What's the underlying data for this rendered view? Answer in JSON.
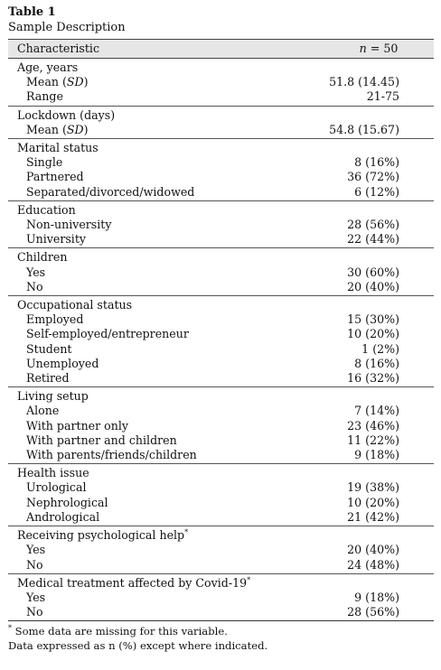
{
  "table": {
    "label": "Table 1",
    "caption": "Sample Description",
    "header": {
      "characteristic": "Characteristic",
      "n_symbol": "n",
      "n_value": " = 50"
    },
    "age": {
      "title": "Age, years",
      "mean_label": "Mean (",
      "mean_sd": "SD",
      "mean_close": ")",
      "mean_value": "51.8 (14.45)",
      "range_label": "Range",
      "range_value": "21-75"
    },
    "lockdown": {
      "title": "Lockdown (days)",
      "mean_label": "Mean (",
      "mean_sd": "SD",
      "mean_close": ")",
      "mean_value": "54.8 (15.67)"
    },
    "marital": {
      "title": "Marital status",
      "items": [
        {
          "label": "Single",
          "value": "8 (16%)"
        },
        {
          "label": "Partnered",
          "value": "36 (72%)"
        },
        {
          "label": "Separated/divorced/widowed",
          "value": "6 (12%)"
        }
      ]
    },
    "education": {
      "title": "Education",
      "items": [
        {
          "label": "Non-university",
          "value": "28 (56%)"
        },
        {
          "label": "University",
          "value": "22 (44%)"
        }
      ]
    },
    "children": {
      "title": "Children",
      "items": [
        {
          "label": "Yes",
          "value": "30 (60%)"
        },
        {
          "label": "No",
          "value": "20 (40%)"
        }
      ]
    },
    "occupational": {
      "title": "Occupational status",
      "items": [
        {
          "label": "Employed",
          "value": "15 (30%)"
        },
        {
          "label": "Self-employed/entrepreneur",
          "value": "10 (20%)"
        },
        {
          "label": "Student",
          "value": "1 (2%)"
        },
        {
          "label": "Unemployed",
          "value": "8 (16%)"
        },
        {
          "label": "Retired",
          "value": "16 (32%)"
        }
      ]
    },
    "living": {
      "title": "Living setup",
      "items": [
        {
          "label": "Alone",
          "value": "7 (14%)"
        },
        {
          "label": "With partner only",
          "value": "23 (46%)"
        },
        {
          "label": "With partner and children",
          "value": "11 (22%)"
        },
        {
          "label": "With parents/friends/children",
          "value": "9 (18%)"
        }
      ]
    },
    "health": {
      "title": "Health issue",
      "items": [
        {
          "label": "Urological",
          "value": "19 (38%)"
        },
        {
          "label": "Nephrological",
          "value": "10 (20%)"
        },
        {
          "label": "Andrological",
          "value": "21 (42%)"
        }
      ]
    },
    "psych": {
      "title": "Receiving psychological help",
      "marker": "*",
      "items": [
        {
          "label": "Yes",
          "value": "20 (40%)"
        },
        {
          "label": "No",
          "value": "24 (48%)"
        }
      ]
    },
    "medical": {
      "title": "Medical treatment affected by Covid-19",
      "marker": "*",
      "items": [
        {
          "label": "Yes",
          "value": "9 (18%)"
        },
        {
          "label": "No",
          "value": "28 (56%)"
        }
      ]
    },
    "footnotes": {
      "marker": "*",
      "missing": " Some data are missing for this variable.",
      "expressed": "Data expressed as n (%) except where indicated."
    }
  }
}
